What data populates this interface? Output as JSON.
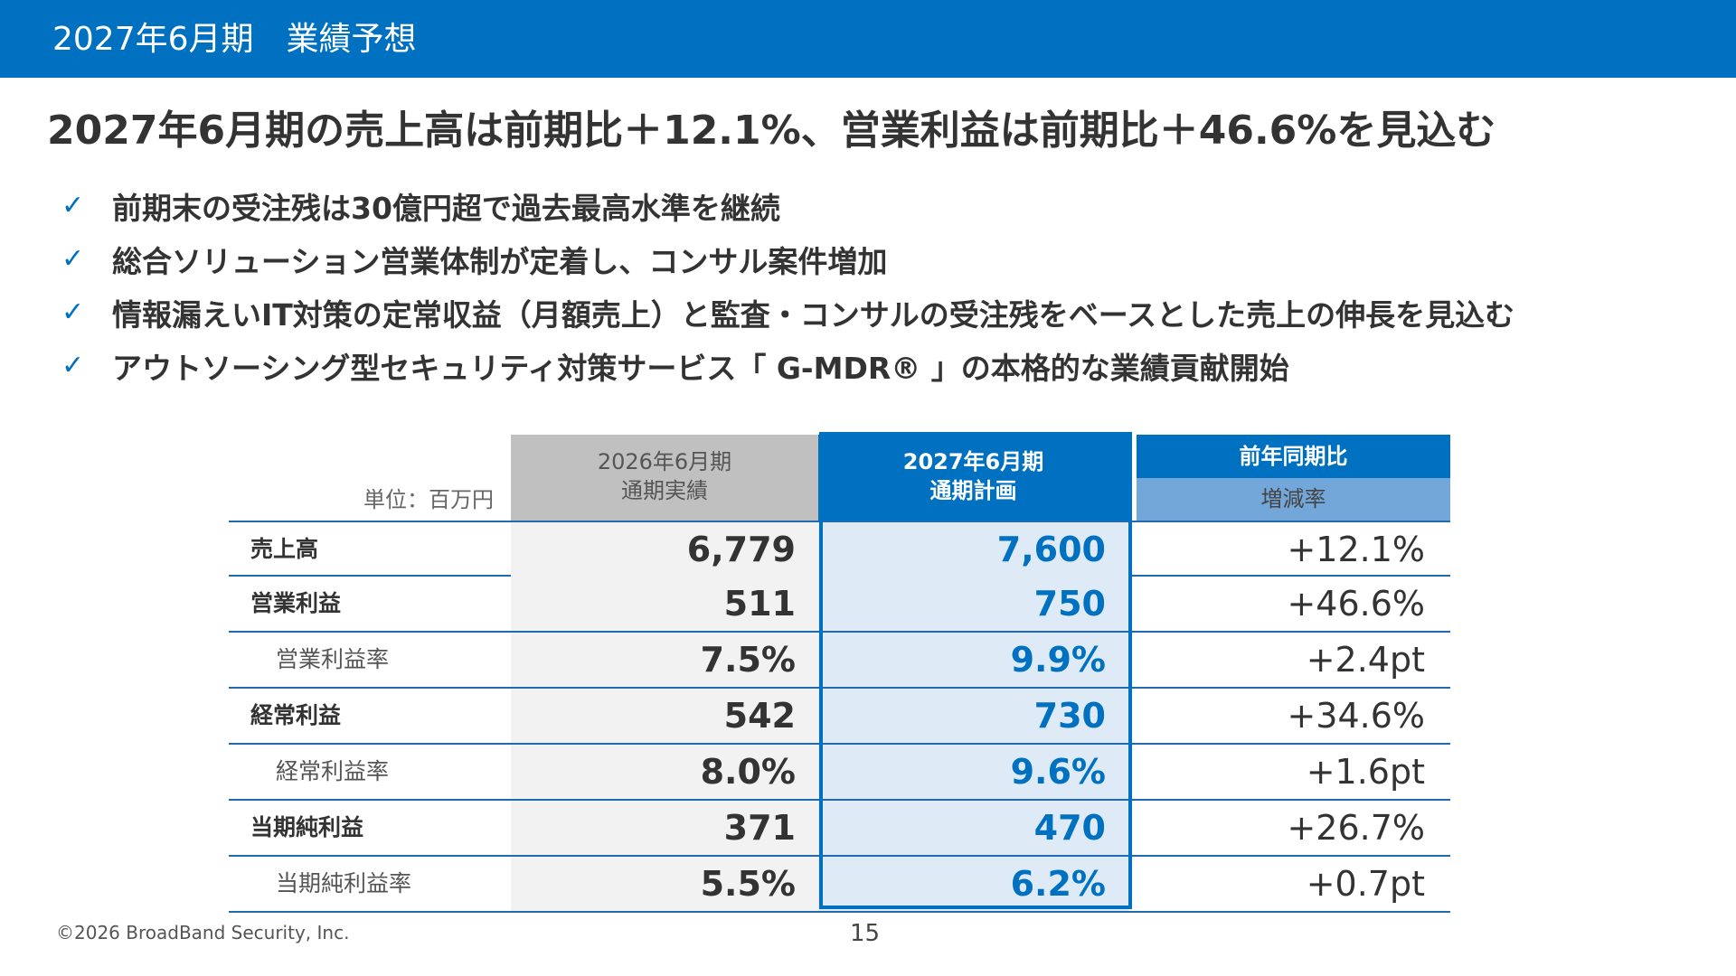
{
  "header": {
    "title": "2027年6月期　業績予想"
  },
  "headline": "2027年6月期の売上高は前期比＋12.1%、営業利益は前期比＋46.6%を見込む",
  "bullets": [
    {
      "icon": "check-icon",
      "text": "前期末の受注残は30億円超で過去最高水準を継続"
    },
    {
      "icon": "check-icon",
      "text": "総合ソリューション営業体制が定着し、コンサル案件増加"
    },
    {
      "icon": "check-icon",
      "text": "情報漏えいIT対策の定常収益（月額売上）と監査・コンサルの受注残をベースとした売上の伸長を見込む"
    },
    {
      "icon": "check-icon",
      "text": "アウトソーシング型セキュリティ対策サービス「 G-MDR® 」の本格的な業績貢献開始"
    }
  ],
  "table": {
    "unit": "単位：百万円",
    "col_prev": {
      "line1": "2026年6月期",
      "line2": "通期実績"
    },
    "col_plan": {
      "line1": "2027年6月期",
      "line2": "通期計画"
    },
    "col_yoy": "前年同期比",
    "col_rate": "増減率",
    "rows": [
      {
        "label": "売上高",
        "prev": "6,779",
        "plan": "7,600",
        "rate": "+12.1%"
      },
      {
        "label": "営業利益",
        "prev": "511",
        "plan": "750",
        "rate": "+46.6%"
      },
      {
        "label": "営業利益率",
        "prev": "7.5%",
        "plan": "9.9%",
        "rate": "+2.4pt"
      },
      {
        "label": "経常利益",
        "prev": "542",
        "plan": "730",
        "rate": "+34.6%"
      },
      {
        "label": "経常利益率",
        "prev": "8.0%",
        "plan": "9.6%",
        "rate": "+1.6pt"
      },
      {
        "label": "当期純利益",
        "prev": "371",
        "plan": "470",
        "rate": "+26.7%"
      },
      {
        "label": "当期純利益率",
        "prev": "5.5%",
        "plan": "6.2%",
        "rate": "+0.7pt"
      }
    ]
  },
  "footer": {
    "copyright": "©2026 BroadBand Security, Inc.",
    "page": "15"
  },
  "colors": {
    "brand_blue": "#0070c0",
    "light_blue": "#deebf7",
    "gray": "#c0c0c0"
  }
}
